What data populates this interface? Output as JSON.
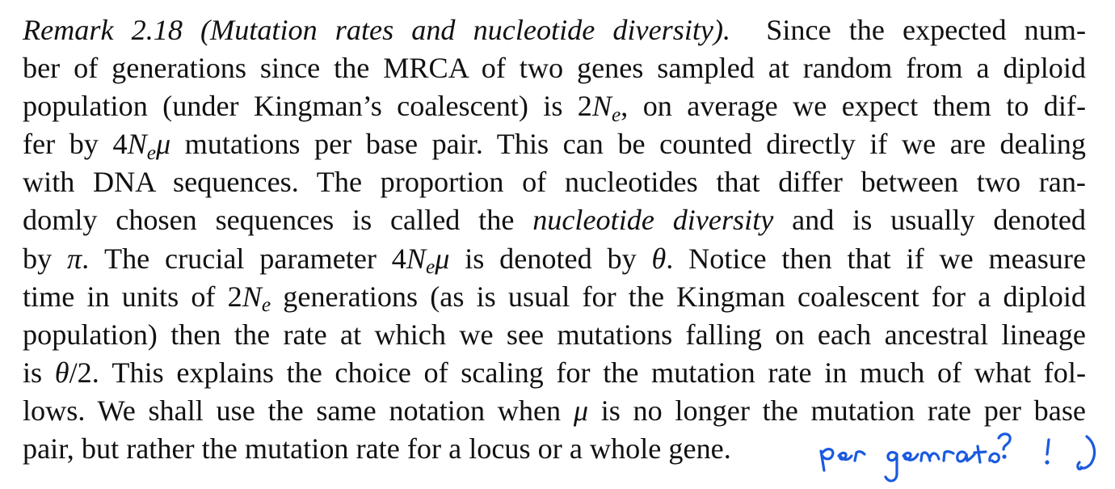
{
  "remark": {
    "heading": "Remark 2.18 (Mutation rates and nucleotide diversity).",
    "lines": {
      "l1_after_heading": "Since the expected num-",
      "l2": "ber of generations since the MRCA of two genes sampled at random from a diploid",
      "l3_a": "population (under Kingman’s coalescent) is 2",
      "l3_N": "N",
      "l3_e": "e",
      "l3_b": ", on average we expect them to dif-",
      "l4_a": "fer by 4",
      "l4_N": "N",
      "l4_e": "e",
      "l4_mu": "μ",
      "l4_b": " mutations per base pair. This can be counted directly if we are dealing",
      "l5": "with DNA sequences. The proportion of nucleotides that differ between two ran-",
      "l6_a": "domly chosen sequences is called the ",
      "l6_term": "nucleotide diversity",
      "l6_b": " and is usually denoted",
      "l7_a": "by ",
      "l7_pi": "π",
      "l7_b": ". The crucial parameter 4",
      "l7_N": "N",
      "l7_e": "e",
      "l7_mu": "μ",
      "l7_c": " is denoted by ",
      "l7_theta": "θ",
      "l7_d": ". Notice then that if we measure",
      "l8_a": "time in units of 2",
      "l8_N": "N",
      "l8_e": "e",
      "l8_b": " generations (as is usual for the Kingman coalescent for a diploid",
      "l9": "population) then the rate at which we see mutations falling on each ancestral lineage",
      "l10_a": "is ",
      "l10_theta": "θ",
      "l10_b": "/2. This explains the choice of scaling for the mutation rate in much of what fol-",
      "l11_a": "lows. We shall use the same notation when ",
      "l11_mu": "μ",
      "l11_b": " is no longer the mutation rate per base",
      "l12": "pair, but rather the mutation rate for a locus or a whole gene."
    }
  },
  "annotation": {
    "handwritten_note": "per generation?!",
    "ink_color": "#1a5ae0"
  }
}
